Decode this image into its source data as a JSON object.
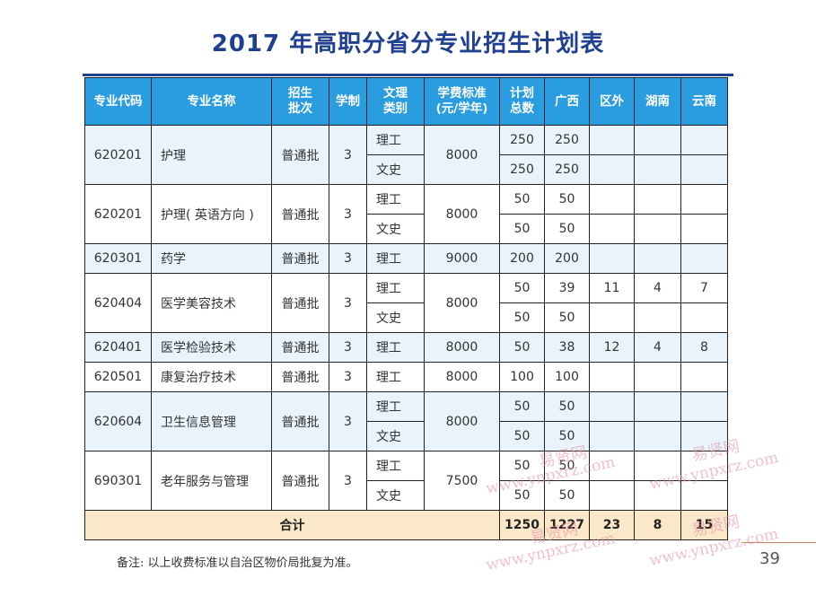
{
  "title": "2017 年高职分省分专业招生计划表",
  "headers": {
    "code": "专业代码",
    "name": "专业名称",
    "batch_l1": "招生",
    "batch_l2": "批次",
    "years": "学制",
    "cat_l1": "文理",
    "cat_l2": "类别",
    "fee_l1": "学费标准",
    "fee_l2": "(元/学年)",
    "plan_l1": "计划",
    "plan_l2": "总数",
    "guangxi": "广西",
    "outside": "区外",
    "hunan": "湖南",
    "yunnan": "云南"
  },
  "rows": [
    {
      "code": "620201",
      "name": "护理",
      "batch": "普通批",
      "years": "3",
      "fee": "8000",
      "subs": [
        {
          "cat": "理工",
          "total": "250",
          "gx": "250",
          "out": "",
          "hn": "",
          "yn": ""
        },
        {
          "cat": "文史",
          "total": "250",
          "gx": "250",
          "out": "",
          "hn": "",
          "yn": ""
        }
      ]
    },
    {
      "code": "620201",
      "name": "护理( 英语方向 )",
      "batch": "普通批",
      "years": "3",
      "fee": "8000",
      "subs": [
        {
          "cat": "理工",
          "total": "50",
          "gx": "50",
          "out": "",
          "hn": "",
          "yn": ""
        },
        {
          "cat": "文史",
          "total": "50",
          "gx": "50",
          "out": "",
          "hn": "",
          "yn": ""
        }
      ]
    },
    {
      "code": "620301",
      "name": "药学",
      "batch": "普通批",
      "years": "3",
      "fee": "9000",
      "subs": [
        {
          "cat": "理工",
          "total": "200",
          "gx": "200",
          "out": "",
          "hn": "",
          "yn": ""
        }
      ]
    },
    {
      "code": "620404",
      "name": "医学美容技术",
      "batch": "普通批",
      "years": "3",
      "fee": "8000",
      "subs": [
        {
          "cat": "理工",
          "total": "50",
          "gx": "39",
          "out": "11",
          "hn": "4",
          "yn": "7"
        },
        {
          "cat": "文史",
          "total": "50",
          "gx": "50",
          "out": "",
          "hn": "",
          "yn": ""
        }
      ]
    },
    {
      "code": "620401",
      "name": "医学检验技术",
      "batch": "普通批",
      "years": "3",
      "fee": "8000",
      "subs": [
        {
          "cat": "理工",
          "total": "50",
          "gx": "38",
          "out": "12",
          "hn": "4",
          "yn": "8"
        }
      ]
    },
    {
      "code": "620501",
      "name": "康复治疗技术",
      "batch": "普通批",
      "years": "3",
      "fee": "8000",
      "subs": [
        {
          "cat": "理工",
          "total": "100",
          "gx": "100",
          "out": "",
          "hn": "",
          "yn": ""
        }
      ]
    },
    {
      "code": "620604",
      "name": "卫生信息管理",
      "batch": "普通批",
      "years": "3",
      "fee": "8000",
      "subs": [
        {
          "cat": "理工",
          "total": "50",
          "gx": "50",
          "out": "",
          "hn": "",
          "yn": ""
        },
        {
          "cat": "文史",
          "total": "50",
          "gx": "50",
          "out": "",
          "hn": "",
          "yn": ""
        }
      ]
    },
    {
      "code": "690301",
      "name": "老年服务与管理",
      "batch": "普通批",
      "years": "3",
      "fee": "7500",
      "subs": [
        {
          "cat": "理工",
          "total": "50",
          "gx": "50",
          "out": "",
          "hn": "",
          "yn": ""
        },
        {
          "cat": "文史",
          "total": "50",
          "gx": "50",
          "out": "",
          "hn": "",
          "yn": ""
        }
      ]
    }
  ],
  "total": {
    "label": "合计",
    "total": "1250",
    "gx": "1227",
    "out": "23",
    "hn": "8",
    "yn": "15"
  },
  "note": "备注: 以上收费标准以自治区物价局批复为准。",
  "page_number": "39",
  "watermark": {
    "cn": "易贤网",
    "url": "www.ynpxrz.com"
  }
}
